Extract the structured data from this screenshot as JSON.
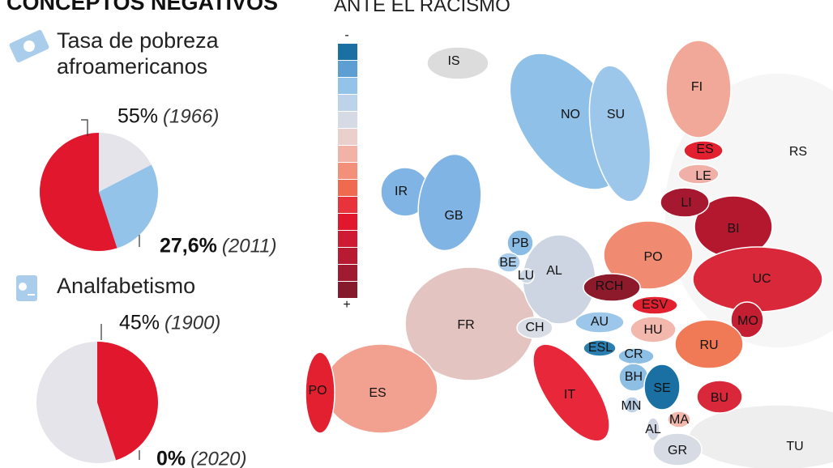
{
  "header": {
    "title": "CONCEPTOS NEGATIVOS",
    "map_title": "ANTE EL RACISMO"
  },
  "pies": [
    {
      "title_lines": [
        "Tasa de pobreza",
        "afroamericanos"
      ],
      "clockwise": false,
      "rest_color": "#e4e4ea",
      "slices": [
        {
          "value": 55,
          "value_label": "55%",
          "year": "(1966)",
          "color": "#e1182d"
        },
        {
          "value": 27.6,
          "value_label": "27,6%",
          "year": "(2011)",
          "color": "#93c3e8"
        }
      ]
    },
    {
      "title_lines": [
        "Analfabetismo"
      ],
      "clockwise": true,
      "rest_color": "#e4e4ea",
      "slices": [
        {
          "value": 45,
          "value_label": "45%",
          "year": "(1900)",
          "color": "#e1182d"
        },
        {
          "value": 0,
          "value_label": "0%",
          "year": "(2020)",
          "color": "#93c3e8"
        }
      ]
    }
  ],
  "legend": {
    "low": "-",
    "high": "+",
    "colors": [
      "#1a6fa3",
      "#5d9fd2",
      "#93c3e8",
      "#bcd3ea",
      "#d5dae4",
      "#e9d0cc",
      "#f2b2a6",
      "#f3907a",
      "#f06a50",
      "#e8323c",
      "#e1182d",
      "#cf1a33",
      "#b81a32",
      "#a01a30",
      "#861a2c"
    ]
  },
  "regions": [
    {
      "label": "RS",
      "color": "#f6f6f6"
    },
    {
      "label": "TU",
      "color": "#eeeeee"
    },
    {
      "label": "IS",
      "color": "#dcdcdc"
    },
    {
      "label": "NO",
      "color": "#8fc0e8"
    },
    {
      "label": "SU",
      "color": "#9cc7ea"
    },
    {
      "label": "FI",
      "color": "#f2a898"
    },
    {
      "label": "BI",
      "color": "#b3182f"
    },
    {
      "label": "UC",
      "color": "#d8283a"
    },
    {
      "label": "LE",
      "color": "#f0b0a8"
    },
    {
      "label": "LI",
      "color": "#a5182f"
    },
    {
      "label": "ES",
      "color": "#e3202f"
    },
    {
      "label": "IR",
      "color": "#7fb4e4"
    },
    {
      "label": "GB",
      "color": "#7fb4e4"
    },
    {
      "label": "FR",
      "color": "#e3c4c0"
    },
    {
      "label": "ES",
      "color": "#f2a090"
    },
    {
      "label": "PO",
      "color": "#e3202f"
    },
    {
      "label": "AL",
      "color": "#cdd5e2"
    },
    {
      "label": "PB",
      "color": "#89bde6"
    },
    {
      "label": "BE",
      "color": "#aacdec"
    },
    {
      "label": "LU",
      "color": "#cdd7e3"
    },
    {
      "label": "PO",
      "color": "#f08a70"
    },
    {
      "label": "RCH",
      "color": "#8c1a2b"
    },
    {
      "label": "ESV",
      "color": "#e3202f"
    },
    {
      "label": "MO",
      "color": "#c41e33"
    },
    {
      "label": "RU",
      "color": "#f07a55"
    },
    {
      "label": "IT",
      "color": "#e8283a"
    },
    {
      "label": "CH",
      "color": "#d9dde6"
    },
    {
      "label": "AU",
      "color": "#9cc7ea"
    },
    {
      "label": "HU",
      "color": "#f2b8ae"
    },
    {
      "label": "ESL",
      "color": "#2b7fb0"
    },
    {
      "label": "CR",
      "color": "#8dbfe5"
    },
    {
      "label": "BH",
      "color": "#8dbfe5"
    },
    {
      "label": "SE",
      "color": "#1a6fa3"
    },
    {
      "label": "BU",
      "color": "#d8283a"
    },
    {
      "label": "MN",
      "color": "#bcd0e6"
    },
    {
      "label": "MA",
      "color": "#f2b8ae"
    },
    {
      "label": "AL",
      "color": "#d0d6e2"
    },
    {
      "label": "GR",
      "color": "#d6dbe4"
    }
  ]
}
